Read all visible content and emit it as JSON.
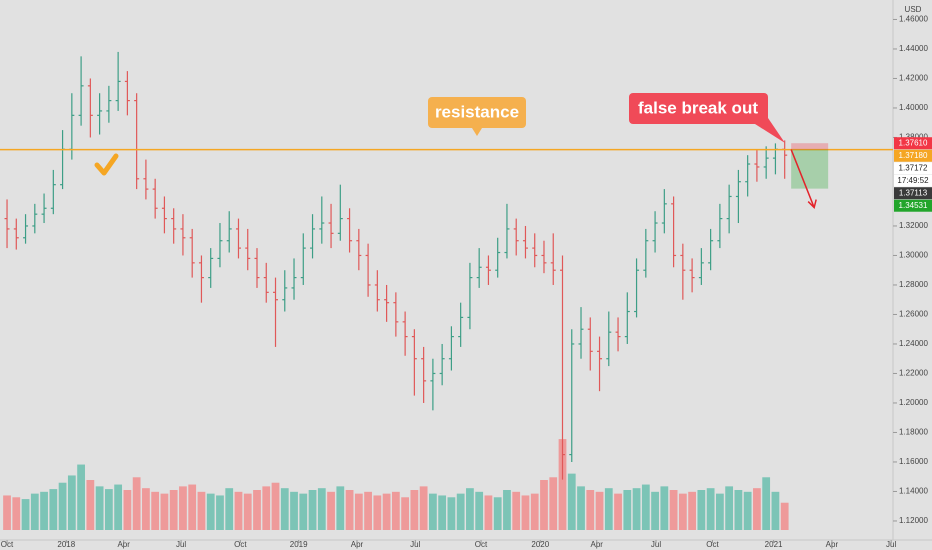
{
  "chart_data": {
    "type": "ohlc",
    "currency": "USD",
    "annotations": {
      "resistance": "resistance",
      "breakout": "false break out"
    },
    "timer": "17:49:52",
    "colors": {
      "up": "#3d9e86",
      "down": "#e05858",
      "vol_up": "#7cc4b6",
      "vol_down": "#ee9a9a",
      "line": "#f5a623"
    },
    "xlim": [
      -0.76,
      95.7
    ],
    "xticks": [
      {
        "value": 0,
        "label": "Oct"
      },
      {
        "value": 6.4,
        "label": "2018"
      },
      {
        "value": 12.6,
        "label": "Apr"
      },
      {
        "value": 18.8,
        "label": "Jul"
      },
      {
        "value": 25.2,
        "label": "Oct"
      },
      {
        "value": 31.5,
        "label": "2019"
      },
      {
        "value": 37.8,
        "label": "Apr"
      },
      {
        "value": 44.1,
        "label": "Jul"
      },
      {
        "value": 51.2,
        "label": "Oct"
      },
      {
        "value": 57.6,
        "label": "2020"
      },
      {
        "value": 63.7,
        "label": "Apr"
      },
      {
        "value": 70.1,
        "label": "Jul"
      },
      {
        "value": 76.2,
        "label": "Oct"
      },
      {
        "value": 82.8,
        "label": "2021"
      },
      {
        "value": 89.1,
        "label": "Apr"
      },
      {
        "value": 95.5,
        "label": "Jul"
      }
    ],
    "ylim": [
      1.1132,
      1.4732
    ],
    "yticks": [
      {
        "value": 1.46,
        "label": "1.46000"
      },
      {
        "value": 1.44,
        "label": "1.44000"
      },
      {
        "value": 1.42,
        "label": "1.42000"
      },
      {
        "value": 1.4,
        "label": "1.40000"
      },
      {
        "value": 1.38,
        "label": "1.38000"
      },
      {
        "value": 1.32,
        "label": "1.32000"
      },
      {
        "value": 1.3,
        "label": "1.30000"
      },
      {
        "value": 1.28,
        "label": "1.28000"
      },
      {
        "value": 1.26,
        "label": "1.26000"
      },
      {
        "value": 1.24,
        "label": "1.24000"
      },
      {
        "value": 1.22,
        "label": "1.22000"
      },
      {
        "value": 1.2,
        "label": "1.20000"
      },
      {
        "value": 1.18,
        "label": "1.18000"
      },
      {
        "value": 1.16,
        "label": "1.16000"
      },
      {
        "value": 1.14,
        "label": "1.14000"
      },
      {
        "value": 1.12,
        "label": "1.12000"
      }
    ],
    "price_tags": [
      {
        "value": 1.3761,
        "label": "1.37610",
        "color": "#f23645"
      },
      {
        "value": 1.3718,
        "label": "1.37180",
        "color": "#f5a623"
      },
      {
        "value": 1.37172,
        "label": "1.37172",
        "color": "#ffffff"
      },
      {
        "value": 1.37113,
        "label": "1.37113",
        "color": "#3a3a3a"
      },
      {
        "value": 1.34531,
        "label": "1.34531",
        "color": "#22a52b"
      }
    ],
    "vlim": [
      0,
      110
    ],
    "ohlc": [
      [
        1.325,
        1.338,
        1.305,
        1.318
      ],
      [
        1.318,
        1.325,
        1.304,
        1.312
      ],
      [
        1.312,
        1.328,
        1.308,
        1.32
      ],
      [
        1.32,
        1.335,
        1.315,
        1.328
      ],
      [
        1.328,
        1.342,
        1.322,
        1.332
      ],
      [
        1.332,
        1.358,
        1.328,
        1.348
      ],
      [
        1.348,
        1.385,
        1.345,
        1.372
      ],
      [
        1.372,
        1.41,
        1.365,
        1.395
      ],
      [
        1.395,
        1.435,
        1.388,
        1.415
      ],
      [
        1.415,
        1.42,
        1.38,
        1.395
      ],
      [
        1.395,
        1.41,
        1.382,
        1.398
      ],
      [
        1.398,
        1.415,
        1.39,
        1.405
      ],
      [
        1.405,
        1.438,
        1.398,
        1.418
      ],
      [
        1.418,
        1.425,
        1.395,
        1.405
      ],
      [
        1.405,
        1.41,
        1.345,
        1.352
      ],
      [
        1.352,
        1.365,
        1.338,
        1.345
      ],
      [
        1.345,
        1.352,
        1.325,
        1.332
      ],
      [
        1.332,
        1.34,
        1.315,
        1.325
      ],
      [
        1.325,
        1.332,
        1.308,
        1.318
      ],
      [
        1.318,
        1.328,
        1.3,
        1.312
      ],
      [
        1.312,
        1.318,
        1.285,
        1.295
      ],
      [
        1.295,
        1.3,
        1.268,
        1.285
      ],
      [
        1.285,
        1.305,
        1.278,
        1.298
      ],
      [
        1.298,
        1.322,
        1.292,
        1.31
      ],
      [
        1.31,
        1.33,
        1.302,
        1.318
      ],
      [
        1.318,
        1.325,
        1.298,
        1.305
      ],
      [
        1.305,
        1.318,
        1.29,
        1.298
      ],
      [
        1.298,
        1.305,
        1.278,
        1.285
      ],
      [
        1.285,
        1.295,
        1.268,
        1.275
      ],
      [
        1.275,
        1.285,
        1.238,
        1.27
      ],
      [
        1.27,
        1.29,
        1.262,
        1.278
      ],
      [
        1.278,
        1.298,
        1.27,
        1.285
      ],
      [
        1.285,
        1.315,
        1.28,
        1.305
      ],
      [
        1.305,
        1.328,
        1.298,
        1.318
      ],
      [
        1.318,
        1.34,
        1.308,
        1.322
      ],
      [
        1.322,
        1.335,
        1.305,
        1.315
      ],
      [
        1.315,
        1.348,
        1.31,
        1.325
      ],
      [
        1.325,
        1.332,
        1.302,
        1.31
      ],
      [
        1.31,
        1.318,
        1.29,
        1.3
      ],
      [
        1.3,
        1.308,
        1.272,
        1.28
      ],
      [
        1.28,
        1.29,
        1.262,
        1.27
      ],
      [
        1.27,
        1.28,
        1.255,
        1.268
      ],
      [
        1.268,
        1.275,
        1.245,
        1.255
      ],
      [
        1.255,
        1.262,
        1.232,
        1.245
      ],
      [
        1.245,
        1.25,
        1.205,
        1.23
      ],
      [
        1.23,
        1.238,
        1.2,
        1.215
      ],
      [
        1.215,
        1.23,
        1.195,
        1.22
      ],
      [
        1.22,
        1.24,
        1.212,
        1.23
      ],
      [
        1.23,
        1.252,
        1.222,
        1.245
      ],
      [
        1.245,
        1.268,
        1.238,
        1.258
      ],
      [
        1.258,
        1.295,
        1.25,
        1.285
      ],
      [
        1.285,
        1.305,
        1.278,
        1.292
      ],
      [
        1.292,
        1.3,
        1.28,
        1.29
      ],
      [
        1.29,
        1.312,
        1.285,
        1.302
      ],
      [
        1.302,
        1.335,
        1.298,
        1.318
      ],
      [
        1.318,
        1.325,
        1.3,
        1.31
      ],
      [
        1.31,
        1.32,
        1.298,
        1.305
      ],
      [
        1.305,
        1.315,
        1.292,
        1.3
      ],
      [
        1.3,
        1.31,
        1.288,
        1.295
      ],
      [
        1.295,
        1.315,
        1.28,
        1.29
      ],
      [
        1.29,
        1.3,
        1.148,
        1.165
      ],
      [
        1.165,
        1.25,
        1.16,
        1.24
      ],
      [
        1.24,
        1.265,
        1.23,
        1.25
      ],
      [
        1.25,
        1.258,
        1.222,
        1.235
      ],
      [
        1.235,
        1.245,
        1.208,
        1.23
      ],
      [
        1.23,
        1.262,
        1.225,
        1.248
      ],
      [
        1.248,
        1.258,
        1.235,
        1.245
      ],
      [
        1.245,
        1.275,
        1.24,
        1.262
      ],
      [
        1.262,
        1.298,
        1.258,
        1.29
      ],
      [
        1.29,
        1.318,
        1.285,
        1.31
      ],
      [
        1.31,
        1.33,
        1.302,
        1.322
      ],
      [
        1.322,
        1.345,
        1.315,
        1.335
      ],
      [
        1.335,
        1.34,
        1.292,
        1.3
      ],
      [
        1.3,
        1.308,
        1.27,
        1.29
      ],
      [
        1.29,
        1.298,
        1.275,
        1.285
      ],
      [
        1.285,
        1.305,
        1.28,
        1.295
      ],
      [
        1.295,
        1.318,
        1.29,
        1.31
      ],
      [
        1.31,
        1.335,
        1.305,
        1.325
      ],
      [
        1.325,
        1.348,
        1.315,
        1.34
      ],
      [
        1.34,
        1.358,
        1.322,
        1.35
      ],
      [
        1.35,
        1.368,
        1.34,
        1.362
      ],
      [
        1.362,
        1.372,
        1.35,
        1.36
      ],
      [
        1.36,
        1.374,
        1.352,
        1.366
      ],
      [
        1.366,
        1.376,
        1.355,
        1.372
      ],
      [
        1.372,
        1.378,
        1.352,
        1.368
      ]
    ],
    "volume": [
      38,
      36,
      34,
      40,
      42,
      45,
      52,
      60,
      72,
      55,
      48,
      45,
      50,
      44,
      58,
      46,
      42,
      40,
      44,
      48,
      50,
      42,
      40,
      38,
      46,
      42,
      40,
      44,
      48,
      52,
      46,
      42,
      40,
      44,
      46,
      42,
      48,
      44,
      40,
      42,
      38,
      40,
      42,
      36,
      44,
      48,
      40,
      38,
      36,
      40,
      46,
      42,
      38,
      36,
      44,
      42,
      38,
      40,
      55,
      58,
      100,
      62,
      48,
      44,
      42,
      46,
      40,
      44,
      46,
      50,
      42,
      48,
      44,
      40,
      42,
      44,
      46,
      40,
      48,
      44,
      42,
      46,
      58,
      42,
      30
    ]
  }
}
